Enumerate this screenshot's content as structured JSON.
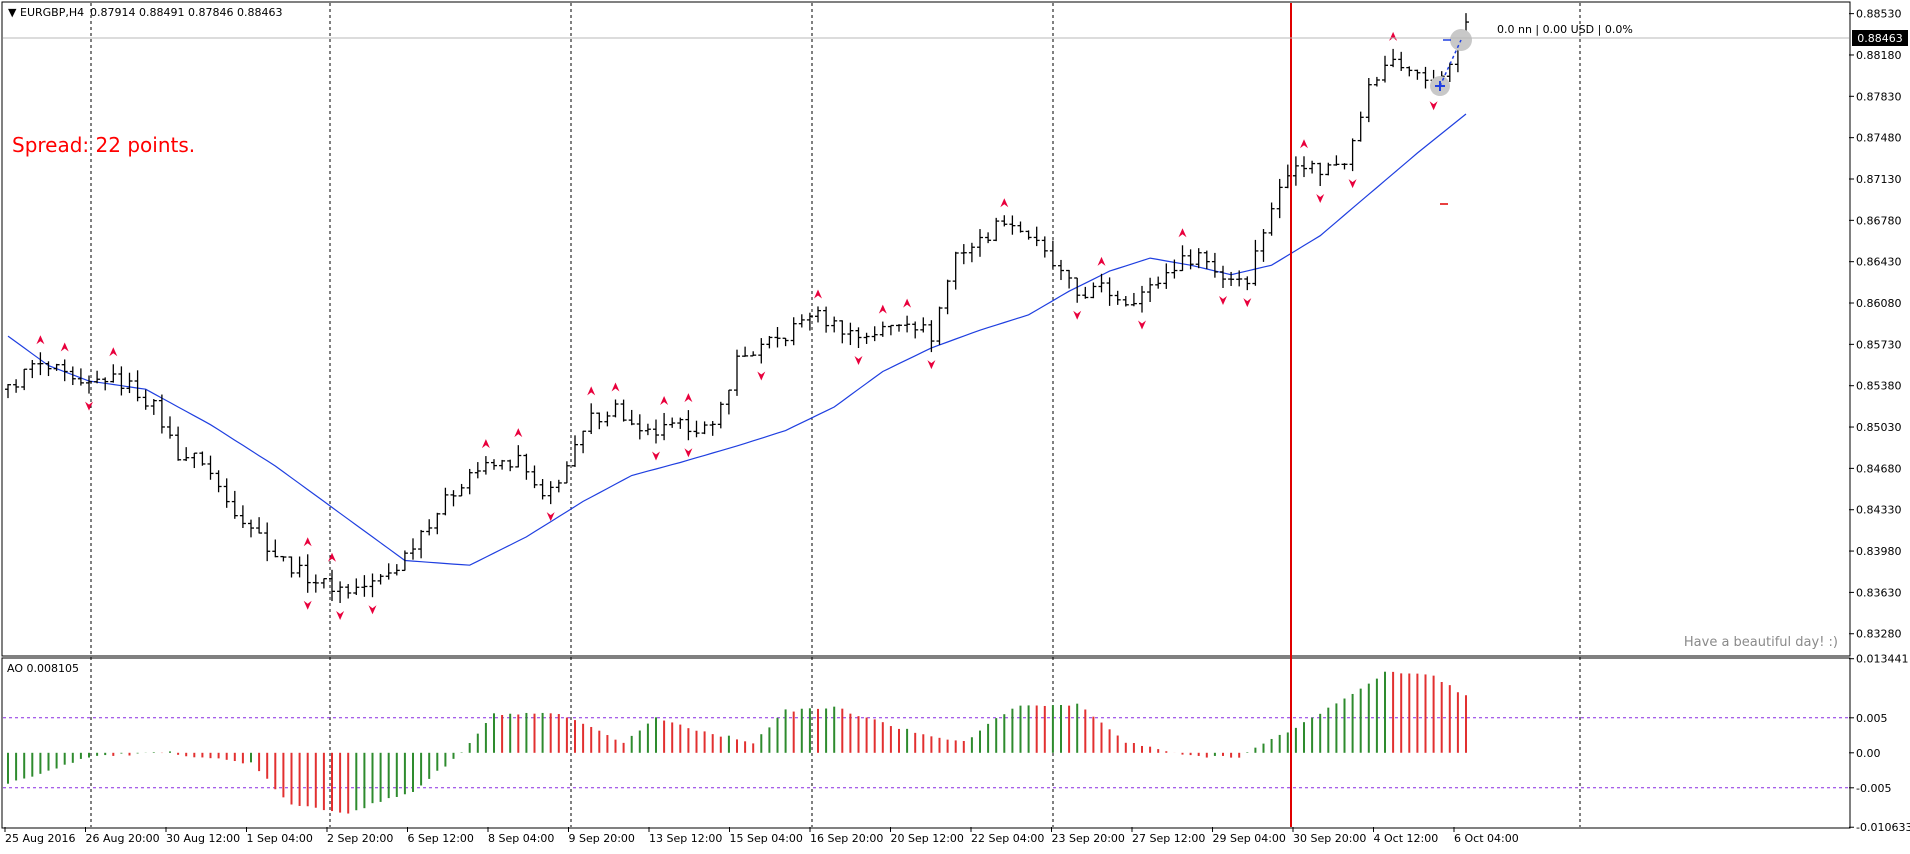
{
  "header": {
    "symbol": "EURGBP,H4",
    "ohlc": "0.87914 0.88491 0.87846 0.88463"
  },
  "overlay": {
    "spread_text": "Spread: 22 points.",
    "position_text": "0.0 nn | 0.00 USD | 0.0%",
    "greeting": "Have a beautiful day! :)"
  },
  "indicator": {
    "label": "AO 0.008105"
  },
  "colors": {
    "background": "#ffffff",
    "candle": "#000000",
    "moving_average": "#1f3fe0",
    "fractal": "#e8003c",
    "ao_up": "#2e8b2e",
    "ao_down": "#e23030",
    "level_line": "#8a2be2",
    "current_price_tag": "#000000",
    "vertical_marker": "#e00000",
    "spread_text": "#ff0000"
  },
  "chart_data": [
    {
      "type": "candlestick",
      "series": [
        {
          "name": "EURGBP,H4"
        },
        {
          "name": "MA"
        }
      ],
      "current_price": "0.88463",
      "ylim": [
        0.831,
        0.8862
      ],
      "y_ticks": [
        "0.88530",
        "0.88180",
        "0.87830",
        "0.87480",
        "0.87130",
        "0.86780",
        "0.86430",
        "0.86080",
        "0.85730",
        "0.85380",
        "0.85030",
        "0.84680",
        "0.84330",
        "0.83980",
        "0.83630",
        "0.83280"
      ],
      "x_ticks": [
        "25 Aug 2016",
        "26 Aug 20:00",
        "30 Aug 12:00",
        "1 Sep 04:00",
        "2 Sep 20:00",
        "6 Sep 12:00",
        "8 Sep 04:00",
        "9 Sep 20:00",
        "13 Sep 12:00",
        "15 Sep 04:00",
        "16 Sep 20:00",
        "20 Sep 12:00",
        "22 Sep 04:00",
        "23 Sep 20:00",
        "27 Sep 12:00",
        "29 Sep 04:00",
        "30 Sep 20:00",
        "4 Oct 12:00",
        "6 Oct 04:00"
      ],
      "close_path": [
        [
          0,
          0.8535
        ],
        [
          3,
          0.8555
        ],
        [
          6,
          0.855
        ],
        [
          9,
          0.8535
        ],
        [
          12,
          0.8545
        ],
        [
          15,
          0.8538
        ],
        [
          18,
          0.852
        ],
        [
          21,
          0.848
        ],
        [
          24,
          0.8475
        ],
        [
          27,
          0.844
        ],
        [
          30,
          0.842
        ],
        [
          33,
          0.8395
        ],
        [
          36,
          0.838
        ],
        [
          39,
          0.837
        ],
        [
          42,
          0.8365
        ],
        [
          45,
          0.837
        ],
        [
          48,
          0.8385
        ],
        [
          51,
          0.8415
        ],
        [
          54,
          0.844
        ],
        [
          57,
          0.8465
        ],
        [
          60,
          0.847
        ],
        [
          63,
          0.8475
        ],
        [
          66,
          0.844
        ],
        [
          69,
          0.847
        ],
        [
          72,
          0.851
        ],
        [
          75,
          0.852
        ],
        [
          78,
          0.8495
        ],
        [
          81,
          0.85
        ],
        [
          84,
          0.8505
        ],
        [
          87,
          0.85
        ],
        [
          90,
          0.856
        ],
        [
          93,
          0.857
        ],
        [
          96,
          0.858
        ],
        [
          99,
          0.86
        ],
        [
          102,
          0.859
        ],
        [
          105,
          0.858
        ],
        [
          108,
          0.8585
        ],
        [
          111,
          0.8595
        ],
        [
          114,
          0.858
        ],
        [
          117,
          0.865
        ],
        [
          120,
          0.866
        ],
        [
          123,
          0.868
        ],
        [
          126,
          0.8665
        ],
        [
          129,
          0.864
        ],
        [
          132,
          0.8615
        ],
        [
          135,
          0.862
        ],
        [
          138,
          0.861
        ],
        [
          141,
          0.862
        ],
        [
          144,
          0.864
        ],
        [
          147,
          0.865
        ],
        [
          150,
          0.863
        ],
        [
          153,
          0.863
        ],
        [
          156,
          0.869
        ],
        [
          159,
          0.873
        ],
        [
          162,
          0.872
        ],
        [
          165,
          0.873
        ],
        [
          168,
          0.879
        ],
        [
          171,
          0.8815
        ],
        [
          174,
          0.88
        ],
        [
          177,
          0.8795
        ],
        [
          180,
          0.8846
        ]
      ],
      "ma_path": [
        [
          0,
          0.858
        ],
        [
          5,
          0.8555
        ],
        [
          10,
          0.8542
        ],
        [
          17,
          0.8535
        ],
        [
          25,
          0.8505
        ],
        [
          33,
          0.847
        ],
        [
          41,
          0.843
        ],
        [
          49,
          0.839
        ],
        [
          57,
          0.8386
        ],
        [
          64,
          0.841
        ],
        [
          71,
          0.844
        ],
        [
          77,
          0.8462
        ],
        [
          83,
          0.8473
        ],
        [
          90,
          0.8487
        ],
        [
          96,
          0.85
        ],
        [
          102,
          0.852
        ],
        [
          108,
          0.855
        ],
        [
          114,
          0.857
        ],
        [
          120,
          0.8585
        ],
        [
          126,
          0.8598
        ],
        [
          131,
          0.8618
        ],
        [
          136,
          0.8635
        ],
        [
          141,
          0.8646
        ],
        [
          146,
          0.864
        ],
        [
          151,
          0.8632
        ],
        [
          156,
          0.864
        ],
        [
          162,
          0.8665
        ],
        [
          168,
          0.87
        ],
        [
          174,
          0.8735
        ],
        [
          180,
          0.8768
        ]
      ]
    },
    {
      "type": "bar",
      "series": [
        {
          "name": "AO"
        }
      ],
      "value": "0.008105",
      "ylim": [
        -0.0106,
        0.0134
      ],
      "y_ticks": [
        "0.013441",
        "0.005",
        "0.00",
        "-0.005",
        "-0.010633"
      ],
      "levels": [
        0.005,
        -0.005
      ],
      "ao_path": [
        [
          0,
          -0.0045
        ],
        [
          10,
          -0.0005
        ],
        [
          20,
          0.0
        ],
        [
          30,
          -0.0015
        ],
        [
          35,
          -0.0075
        ],
        [
          42,
          -0.0085
        ],
        [
          50,
          -0.0055
        ],
        [
          56,
          0.0
        ],
        [
          60,
          0.0055
        ],
        [
          68,
          0.0055
        ],
        [
          76,
          0.0015
        ],
        [
          80,
          0.005
        ],
        [
          86,
          0.003
        ],
        [
          92,
          0.0015
        ],
        [
          96,
          0.006
        ],
        [
          102,
          0.0065
        ],
        [
          110,
          0.0035
        ],
        [
          118,
          0.0015
        ],
        [
          124,
          0.0065
        ],
        [
          132,
          0.007
        ],
        [
          138,
          0.0015
        ],
        [
          146,
          -0.0005
        ],
        [
          152,
          -0.0005
        ],
        [
          158,
          0.003
        ],
        [
          164,
          0.007
        ],
        [
          170,
          0.0115
        ],
        [
          176,
          0.011
        ],
        [
          180,
          0.0081
        ]
      ]
    }
  ]
}
